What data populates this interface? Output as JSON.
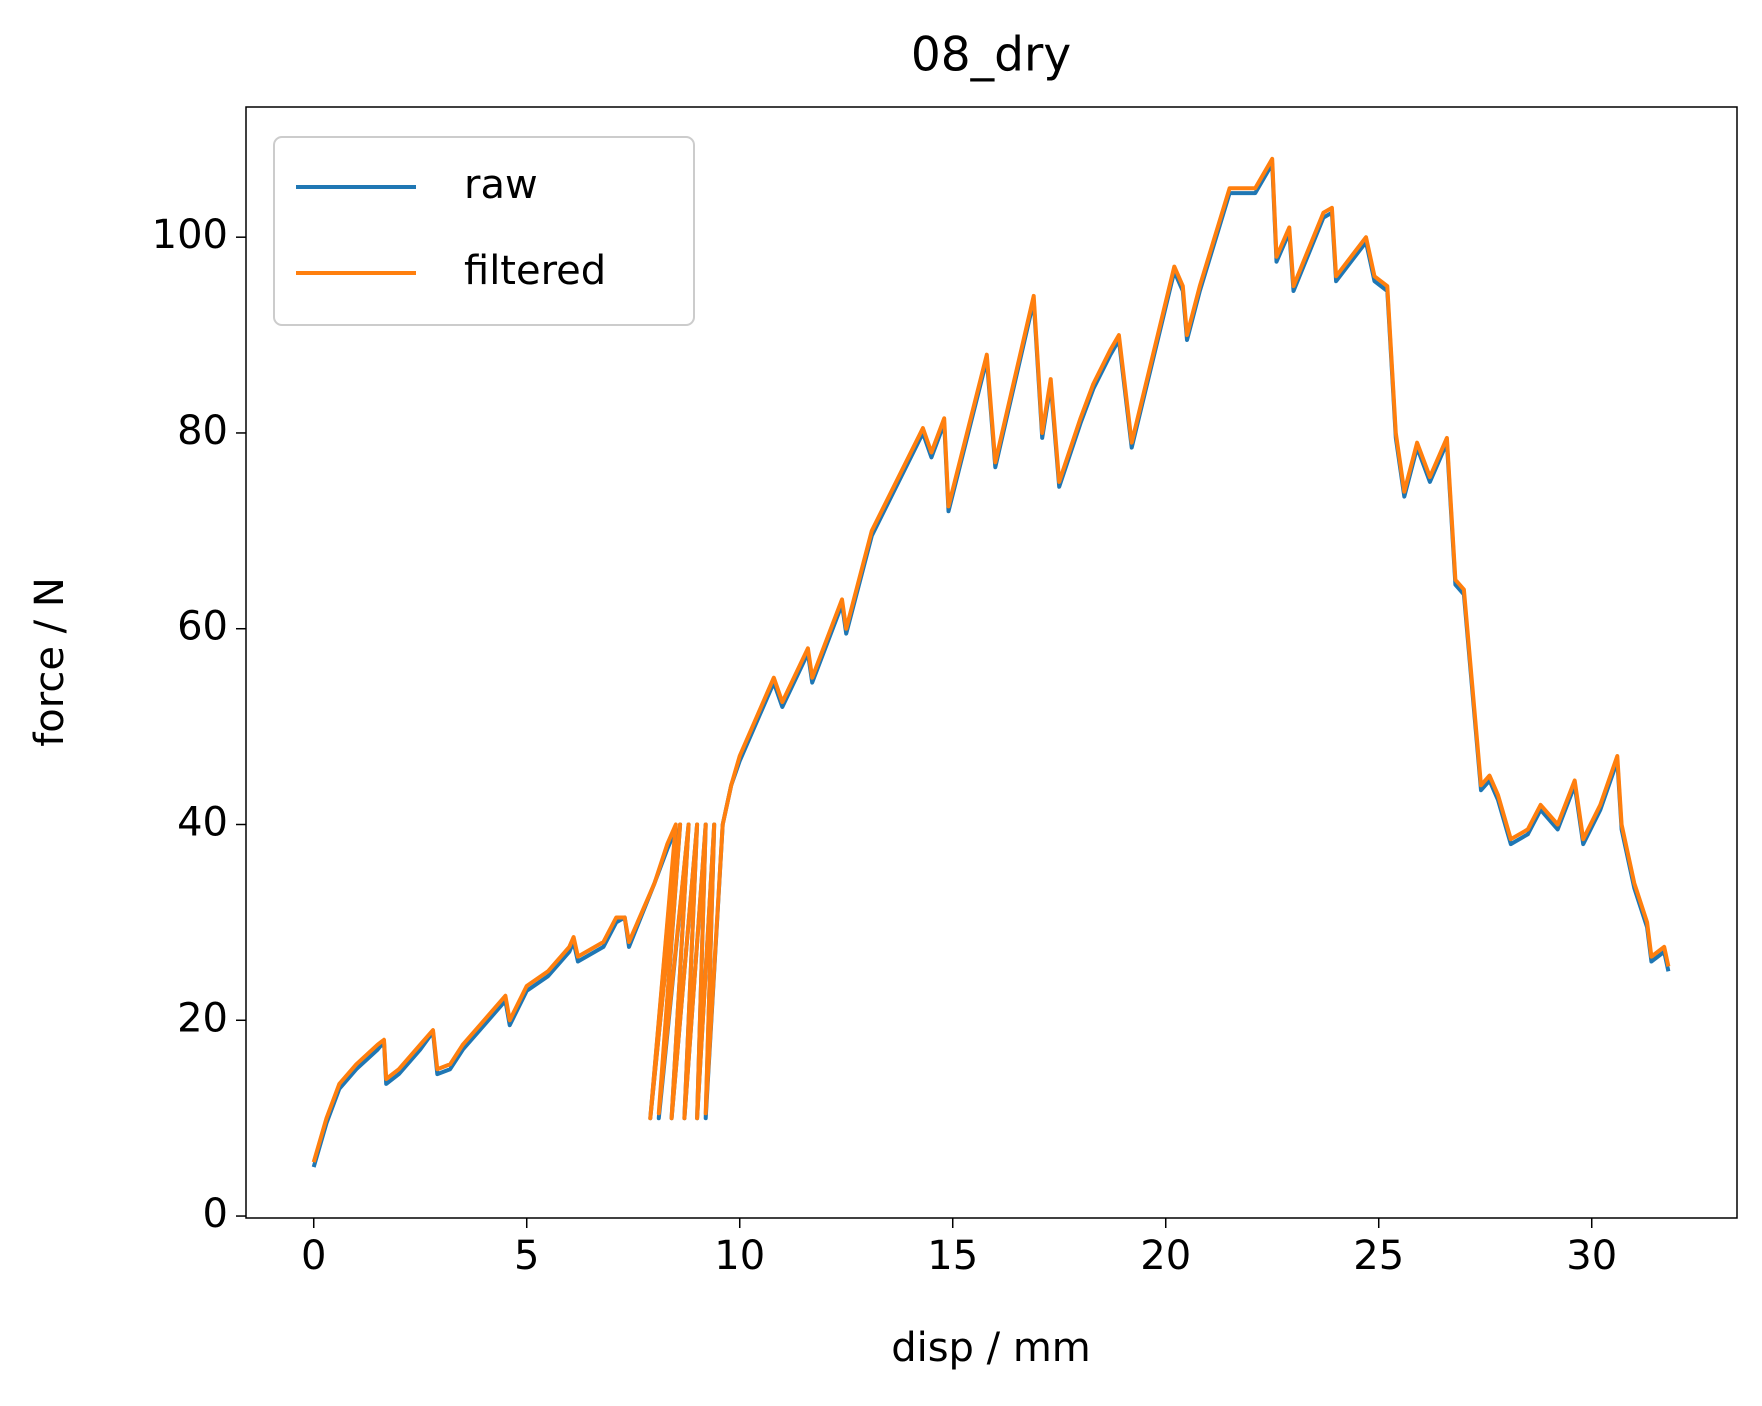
{
  "chart_data": {
    "type": "line",
    "title": "08_dry",
    "xlabel": "disp / mm",
    "ylabel": "force / N",
    "x": [
      0,
      0.3,
      0.6,
      1,
      1.5,
      1.65,
      1.7,
      2,
      2.5,
      2.8,
      2.9,
      3.2,
      3.5,
      4,
      4.5,
      4.6,
      5,
      5.5,
      6,
      6.1,
      6.2,
      6.8,
      7.1,
      7.3,
      7.4,
      8,
      8.3,
      8.5,
      7.9,
      8.6,
      8.1,
      8.8,
      8.4,
      9,
      8.7,
      9.2,
      9,
      9.4,
      9.2,
      9.6,
      9.8,
      10,
      10.8,
      11,
      11.6,
      11.7,
      12.4,
      12.5,
      13.1,
      14.3,
      14.5,
      14.8,
      14.9,
      15.8,
      16,
      16.9,
      17.1,
      17.3,
      17.5,
      18,
      18.3,
      18.7,
      18.9,
      19.2,
      20.2,
      20.4,
      20.5,
      20.8,
      21.5,
      22.1,
      22.5,
      22.6,
      22.9,
      23,
      23.7,
      23.9,
      24,
      24.7,
      24.9,
      25.2,
      25.4,
      25.6,
      25.9,
      26.2,
      26.6,
      26.8,
      27,
      27.4,
      27.6,
      27.8,
      28.1,
      28.5,
      28.8,
      29.2,
      29.6,
      29.8,
      30.2,
      30.6,
      30.7,
      31,
      31.3,
      31.4,
      31.7,
      31.8
    ],
    "series": [
      {
        "name": "raw",
        "color": "#1f77b4",
        "values": [
          5,
          9.5,
          13,
          15,
          17,
          17.8,
          13.5,
          14.5,
          17,
          18.8,
          14.5,
          15,
          17,
          19.5,
          22,
          19.5,
          23,
          24.5,
          27,
          28,
          26,
          27.5,
          30,
          30.5,
          27.5,
          34,
          37.5,
          39.5,
          10,
          40,
          10,
          40,
          10,
          40,
          10,
          40,
          10,
          40,
          10,
          40,
          44,
          46.5,
          54.5,
          52,
          57.5,
          54.5,
          62.5,
          59.5,
          69.5,
          80,
          77.5,
          81,
          72,
          87.5,
          76.5,
          93.5,
          79.5,
          85,
          74.5,
          81,
          84.5,
          88,
          89.5,
          78.5,
          96.5,
          94.5,
          89.5,
          94.5,
          104.5,
          104.5,
          107.5,
          97.5,
          100.5,
          94.5,
          102,
          102.5,
          95.5,
          99.5,
          95.5,
          94.5,
          79.5,
          73.5,
          78.5,
          75,
          79,
          64.5,
          63.5,
          43.5,
          44.5,
          42.5,
          38,
          39,
          41.5,
          39.5,
          44,
          38,
          41.5,
          46.5,
          39.5,
          33.5,
          29.5,
          26,
          27,
          25
        ]
      },
      {
        "name": "filtered",
        "color": "#ff7f0e",
        "values": [
          5.5,
          10,
          13.5,
          15.5,
          17.5,
          18,
          14,
          15,
          17.5,
          19,
          15,
          15.5,
          17.5,
          20,
          22.5,
          20,
          23.5,
          25,
          27.5,
          28.5,
          26.5,
          28,
          30.5,
          30.5,
          28,
          34,
          38,
          40,
          10,
          40,
          10.5,
          40,
          10,
          40,
          10,
          40,
          10,
          40,
          10.5,
          40,
          44,
          47,
          55,
          52.5,
          58,
          55,
          63,
          60,
          70,
          80.5,
          78,
          81.5,
          72.5,
          88,
          77,
          94,
          80,
          85.5,
          75,
          81.5,
          85,
          88.5,
          90,
          79,
          97,
          95,
          90,
          95,
          105,
          105,
          108,
          98,
          101,
          95,
          102.5,
          103,
          96,
          100,
          96,
          95,
          80,
          74,
          79,
          75.5,
          79.5,
          65,
          64,
          44,
          45,
          43,
          38.5,
          39.5,
          42,
          40,
          44.5,
          38.5,
          42,
          47,
          40,
          34,
          30,
          26.5,
          27.5,
          25.5
        ]
      }
    ],
    "xlim": [
      -1.59,
      33.41
    ],
    "ylim": [
      -0.2,
      113.3
    ],
    "xticks": [
      0,
      5,
      10,
      15,
      20,
      25,
      30
    ],
    "yticks": [
      0,
      20,
      40,
      60,
      80,
      100
    ],
    "legend": "upper left"
  }
}
